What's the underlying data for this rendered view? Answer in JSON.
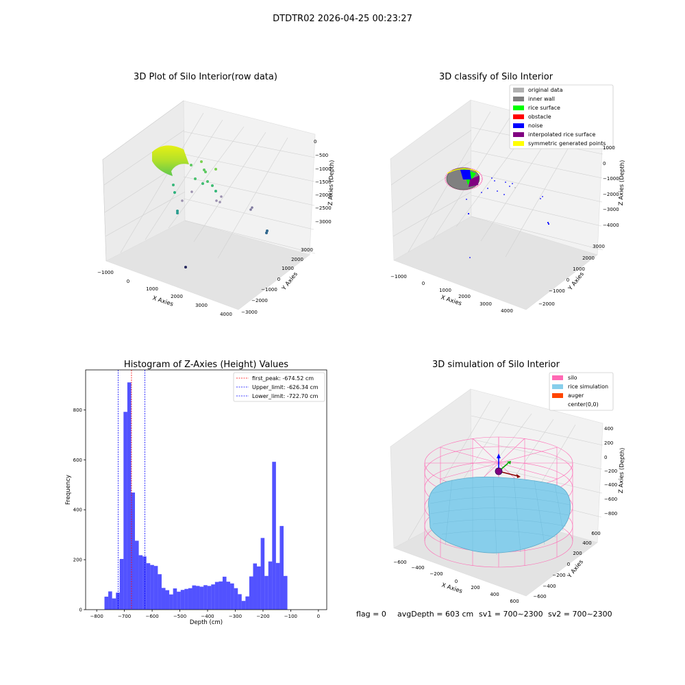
{
  "suptitle": "DTDTR02 2026-04-25 00:23:27",
  "footer": {
    "flag": "flag = 0",
    "avgDepth": "avgDepth = 603 cm",
    "sv1": "sv1 = 700~2300",
    "sv2": "sv2 = 700~2300"
  },
  "plot1": {
    "title": "3D Plot of Silo Interior(row data)",
    "xlabel": "X Axies",
    "ylabel": "Y Axies",
    "zlabel": "Z Axies (Depth)",
    "xticks": [
      "−1000",
      "0",
      "1000",
      "2000",
      "3000",
      "4000"
    ],
    "yticks": [
      "−3000",
      "−2000",
      "−1000",
      "0",
      "1000",
      "2000",
      "3000"
    ],
    "zticks": [
      "0",
      "−500",
      "−1000",
      "−1500",
      "−2000",
      "−2500",
      "−3000"
    ]
  },
  "plot2": {
    "title": "3D classify of Silo Interior",
    "xlabel": "X Axies",
    "ylabel": "Y Axies",
    "zlabel": "Z Axies (Depth)",
    "xticks": [
      "−1000",
      "0",
      "1000",
      "2000",
      "3000",
      "4000"
    ],
    "yticks": [
      "−2000",
      "−1000",
      "0",
      "1000",
      "2000",
      "3000"
    ],
    "zticks": [
      "1000",
      "0",
      "−1000",
      "−2000",
      "−3000",
      "−4000"
    ],
    "legend": [
      {
        "label": "original data",
        "color": "#b0b0b0"
      },
      {
        "label": "inner wall",
        "color": "#808080"
      },
      {
        "label": "rice surface",
        "color": "#00ff00"
      },
      {
        "label": "obstacle",
        "color": "#ff0000"
      },
      {
        "label": "noise",
        "color": "#0000ff"
      },
      {
        "label": "interpolated rice surface",
        "color": "#800080"
      },
      {
        "label": "symmetric generated points",
        "color": "#ffff00"
      }
    ]
  },
  "plot4": {
    "title": "3D simulation of Silo Interior",
    "xlabel": "X Axies",
    "ylabel": "Y Axies",
    "zlabel": "Z Axies (Depth)",
    "xticks": [
      "−600",
      "−400",
      "−200",
      "0",
      "200",
      "400",
      "600"
    ],
    "yticks": [
      "−600",
      "−400",
      "−200",
      "0",
      "200",
      "400",
      "600"
    ],
    "zticks": [
      "400",
      "200",
      "0",
      "−200",
      "−400",
      "−600",
      "−800"
    ],
    "legend": [
      {
        "label": "silo",
        "color": "#ff69b4"
      },
      {
        "label": "rice simulation",
        "color": "#87ceeb"
      },
      {
        "label": "auger",
        "color": "#ff4500"
      },
      {
        "label": "center(0,0)",
        "color": "#ffffff"
      }
    ]
  },
  "chart_data": {
    "type": "bar",
    "title": "Histogram of Z-Axies (Height) Values",
    "xlabel": "Depth (cm)",
    "ylabel": "Frequency",
    "xlim": [
      -840,
      30
    ],
    "ylim": [
      0,
      960
    ],
    "xticks": [
      -800,
      -700,
      -600,
      -500,
      -400,
      -300,
      -200,
      -100,
      0
    ],
    "yticks": [
      0,
      200,
      400,
      600,
      800
    ],
    "bar_color": "#0000ff",
    "bin_start": -772,
    "bin_width": 13.75,
    "values": [
      52,
      73,
      45,
      68,
      203,
      792,
      910,
      469,
      276,
      218,
      213,
      186,
      179,
      175,
      142,
      87,
      78,
      61,
      85,
      72,
      79,
      83,
      86,
      97,
      95,
      92,
      98,
      95,
      101,
      111,
      113,
      132,
      112,
      105,
      86,
      62,
      35,
      53,
      133,
      185,
      173,
      287,
      135,
      193,
      592,
      187,
      335,
      135
    ],
    "vlines": [
      {
        "label": "first_peak: -674.52 cm",
        "x": -674.52,
        "color": "#ff0000"
      },
      {
        "label": "Upper_limit: -626.34 cm",
        "x": -626.34,
        "color": "#0000ff"
      },
      {
        "label": "Lower_limit: -722.70 cm",
        "x": -722.7,
        "color": "#0000ff"
      }
    ]
  }
}
